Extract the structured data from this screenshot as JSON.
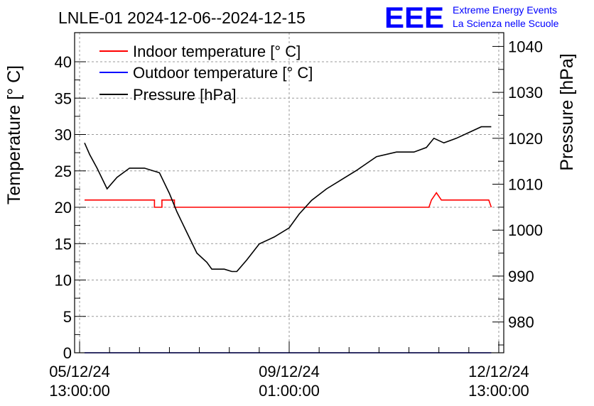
{
  "chart_data": {
    "type": "line",
    "title": "LNLE-01 2024-12-06--2024-12-15",
    "logo": {
      "mark": "EEE",
      "line1": "Extreme Energy Events",
      "line2": "La Scienza nelle Scuole"
    },
    "colors": {
      "indoor": "#ff0000",
      "outdoor": "#0000ff",
      "pressure": "#000000",
      "logo": "#0000ff"
    },
    "legend_position": "top-left",
    "grid": true,
    "x_axis": {
      "type": "datetime",
      "range": [
        "2024-12-05 11:00:00",
        "2024-12-12 15:00:00"
      ],
      "tick_labels": [
        {
          "x": "2024-12-05 13:00:00",
          "line1": "05/12/24",
          "line2": "13:00:00"
        },
        {
          "x": "2024-12-09 01:00:00",
          "line1": "09/12/24",
          "line2": "01:00:00"
        },
        {
          "x": "2024-12-12 13:00:00",
          "line1": "12/12/24",
          "line2": "13:00:00"
        }
      ]
    },
    "y_axis_left": {
      "label": "Temperature [° C]",
      "range": [
        0,
        44
      ],
      "ticks": [
        "0",
        "5",
        "10",
        "15",
        "20",
        "25",
        "30",
        "35",
        "40"
      ]
    },
    "y_axis_right": {
      "label": "Pressure [hPa]",
      "range": [
        973.3,
        1043
      ],
      "ticks": [
        "980",
        "990",
        "1000",
        "1010",
        "1020",
        "1030",
        "1040"
      ]
    },
    "series": [
      {
        "name": "Indoor temperature [° C]",
        "axis": "left",
        "points": [
          [
            "2024-12-05 15:00:00",
            21
          ],
          [
            "2024-12-06 19:00:00",
            21
          ],
          [
            "2024-12-06 19:00:00",
            20
          ],
          [
            "2024-12-06 22:00:00",
            20
          ],
          [
            "2024-12-06 22:00:00",
            21
          ],
          [
            "2024-12-07 03:00:00",
            21
          ],
          [
            "2024-12-07 03:00:00",
            20
          ],
          [
            "2024-12-11 09:00:00",
            20
          ],
          [
            "2024-12-11 10:00:00",
            21
          ],
          [
            "2024-12-11 12:00:00",
            22
          ],
          [
            "2024-12-11 14:00:00",
            21
          ],
          [
            "2024-12-12 09:00:00",
            21
          ],
          [
            "2024-12-12 10:00:00",
            20
          ]
        ]
      },
      {
        "name": "Outdoor temperature [° C]",
        "axis": "left",
        "points": [
          [
            "2024-12-05 15:00:00",
            0
          ],
          [
            "2024-12-12 10:00:00",
            0
          ]
        ]
      },
      {
        "name": "Pressure [hPa]",
        "axis": "right",
        "points": [
          [
            "2024-12-05 15:00:00",
            1019
          ],
          [
            "2024-12-05 17:00:00",
            1016.5
          ],
          [
            "2024-12-05 20:00:00",
            1013.5
          ],
          [
            "2024-12-06 00:00:00",
            1009
          ],
          [
            "2024-12-06 04:00:00",
            1011.5
          ],
          [
            "2024-12-06 09:00:00",
            1013.5
          ],
          [
            "2024-12-06 15:00:00",
            1013.5
          ],
          [
            "2024-12-06 21:00:00",
            1012.5
          ],
          [
            "2024-12-07 01:00:00",
            1008
          ],
          [
            "2024-12-07 04:00:00",
            1004
          ],
          [
            "2024-12-07 08:00:00",
            999.5
          ],
          [
            "2024-12-07 12:00:00",
            995
          ],
          [
            "2024-12-07 16:00:00",
            993
          ],
          [
            "2024-12-07 18:00:00",
            991.5
          ],
          [
            "2024-12-07 23:00:00",
            991.5
          ],
          [
            "2024-12-08 02:00:00",
            991
          ],
          [
            "2024-12-08 04:00:00",
            991
          ],
          [
            "2024-12-08 08:00:00",
            993.5
          ],
          [
            "2024-12-08 13:00:00",
            997
          ],
          [
            "2024-12-08 19:00:00",
            998.5
          ],
          [
            "2024-12-09 01:00:00",
            1000.5
          ],
          [
            "2024-12-09 05:00:00",
            1003.5
          ],
          [
            "2024-12-09 10:00:00",
            1006.5
          ],
          [
            "2024-12-09 16:00:00",
            1009
          ],
          [
            "2024-12-09 22:00:00",
            1011
          ],
          [
            "2024-12-10 04:00:00",
            1013
          ],
          [
            "2024-12-10 08:00:00",
            1014.5
          ],
          [
            "2024-12-10 12:00:00",
            1016
          ],
          [
            "2024-12-10 20:00:00",
            1017
          ],
          [
            "2024-12-11 03:00:00",
            1017
          ],
          [
            "2024-12-11 08:00:00",
            1018
          ],
          [
            "2024-12-11 11:00:00",
            1020
          ],
          [
            "2024-12-11 15:00:00",
            1019
          ],
          [
            "2024-12-11 20:00:00",
            1020
          ],
          [
            "2024-12-12 02:00:00",
            1021.5
          ],
          [
            "2024-12-12 06:00:00",
            1022.5
          ],
          [
            "2024-12-12 10:00:00",
            1022.5
          ]
        ]
      }
    ]
  }
}
